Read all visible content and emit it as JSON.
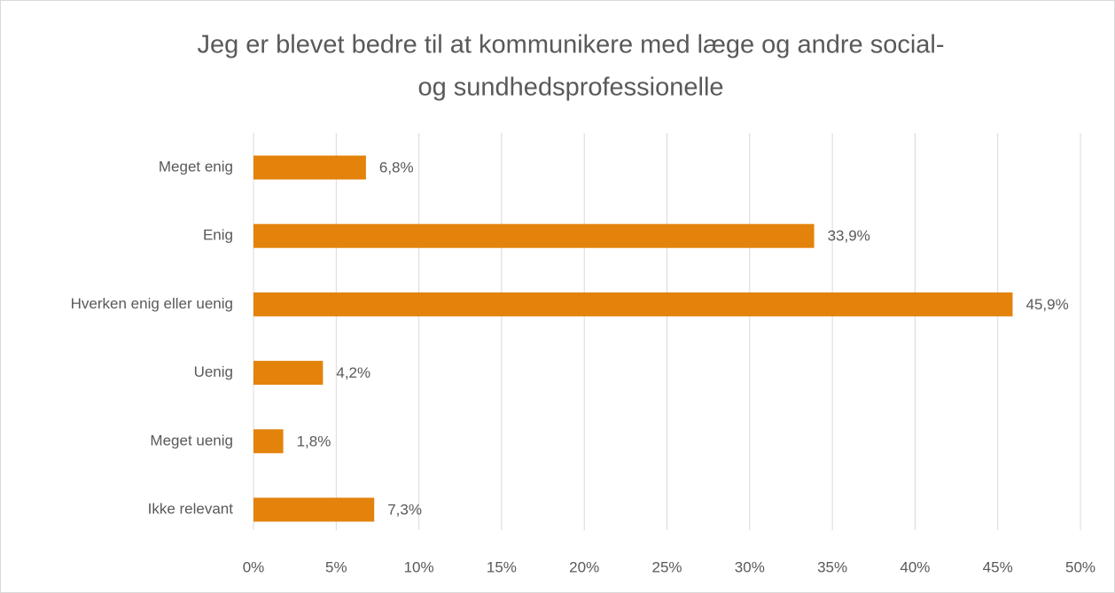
{
  "chart_data": {
    "type": "bar",
    "orientation": "horizontal",
    "title": [
      "Jeg er blevet bedre til at kommunikere med læge og andre social-",
      "og sundhedsprofessionelle"
    ],
    "categories": [
      "Meget enig",
      "Enig",
      "Hverken enig eller uenig",
      "Uenig",
      "Meget uenig",
      "Ikke relevant"
    ],
    "values": [
      6.8,
      33.9,
      45.9,
      4.2,
      1.8,
      7.3
    ],
    "value_labels": [
      "6,8%",
      "33,9%",
      "45,9%",
      "4,2%",
      "1,8%",
      "7,3%"
    ],
    "color": "#e3830c",
    "xlim": [
      0,
      50
    ],
    "xticks": [
      {
        "value": 0,
        "label": "0%"
      },
      {
        "value": 5,
        "label": "5%"
      },
      {
        "value": 10,
        "label": "10%"
      },
      {
        "value": 15,
        "label": "15%"
      },
      {
        "value": 20,
        "label": "20%"
      },
      {
        "value": 25,
        "label": "25%"
      },
      {
        "value": 30,
        "label": "30%"
      },
      {
        "value": 35,
        "label": "35%"
      },
      {
        "value": 40,
        "label": "40%"
      },
      {
        "value": 45,
        "label": "45%"
      },
      {
        "value": 50,
        "label": "50%"
      }
    ],
    "grid": true
  }
}
